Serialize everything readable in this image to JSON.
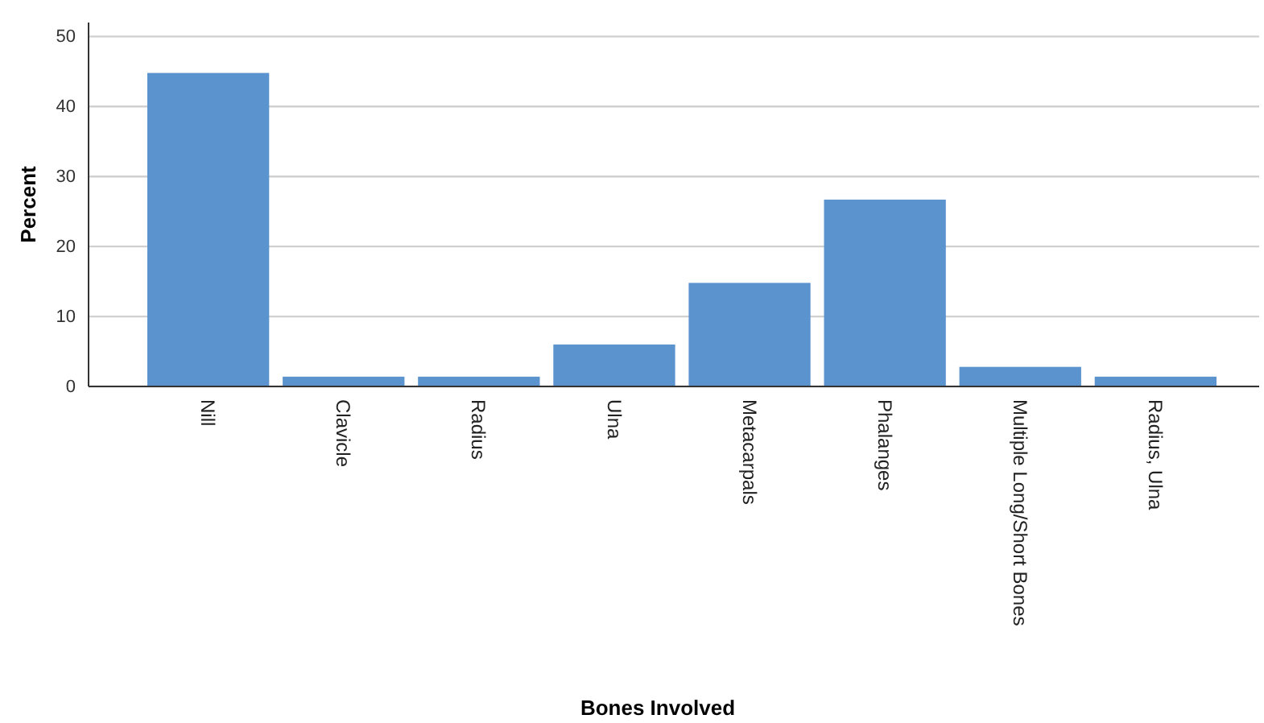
{
  "chart_data": {
    "type": "bar",
    "xlabel": "Bones Involved",
    "ylabel": "Percent",
    "categories": [
      "Nill",
      "Clavicle",
      "Radius",
      "Ulna",
      "Metacarpals",
      "Phalanges",
      "Multiple Long/Short Bones",
      "Radius, Ulna"
    ],
    "values": [
      44.8,
      1.4,
      1.4,
      6,
      14.8,
      26.7,
      2.8,
      1.4
    ],
    "color": "#5b93cf",
    "ylim": [
      0,
      52
    ],
    "yticks": [
      0,
      10,
      20,
      30,
      40,
      50
    ],
    "grid": "y"
  }
}
